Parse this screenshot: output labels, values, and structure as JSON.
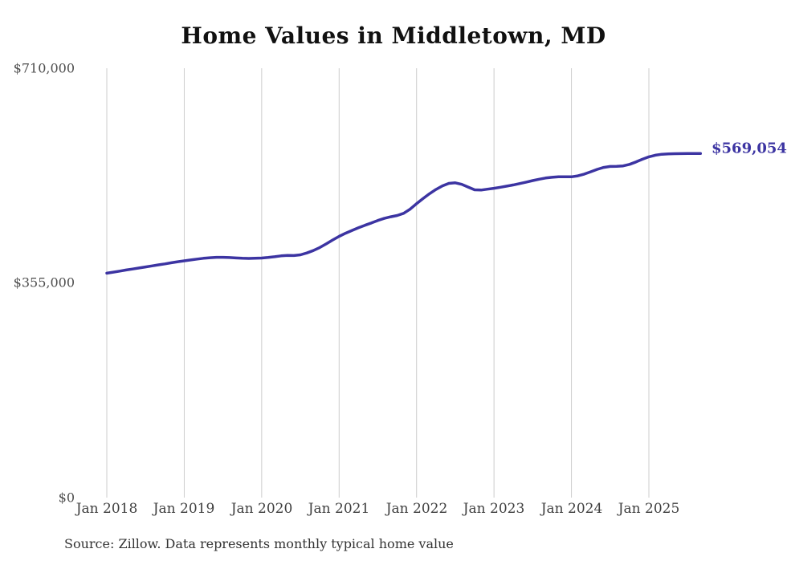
{
  "chart": {
    "title": "Home Values in Middletown, MD",
    "end_label": "$569,054",
    "source": "Source: Zillow. Data represents monthly typical home value"
  },
  "chart_data": {
    "type": "line",
    "title": "Home Values in Middletown, MD",
    "series_name": "Monthly typical home value",
    "x_start": "2018-01",
    "x_frequency": "monthly",
    "x_tick_labels": [
      "Jan 2018",
      "Jan 2019",
      "Jan 2020",
      "Jan 2021",
      "Jan 2022",
      "Jan 2023",
      "Jan 2024",
      "Jan 2025"
    ],
    "y_tick_labels": [
      "$710,000",
      "$355,000",
      "$0"
    ],
    "y_tick_values": [
      710000,
      355000,
      0
    ],
    "ylim": [
      0,
      710000
    ],
    "grid": "vertical-only",
    "line_color": "#3c34a2",
    "gridline_color": "#cccccc",
    "final_value": 569054,
    "final_value_label": "$569,054",
    "values": [
      371000,
      372800,
      374500,
      376300,
      378000,
      379700,
      381400,
      383100,
      384800,
      386500,
      388300,
      390000,
      391500,
      393000,
      394400,
      395700,
      396700,
      397300,
      397300,
      396900,
      396300,
      395800,
      395500,
      395700,
      396200,
      397100,
      398300,
      399700,
      400400,
      400200,
      401500,
      404500,
      408500,
      413500,
      419500,
      426000,
      432000,
      437200,
      441800,
      446200,
      450300,
      454200,
      458200,
      461700,
      464300,
      466500,
      470000,
      477000,
      486000,
      494500,
      502500,
      509500,
      515500,
      519500,
      520500,
      518000,
      513500,
      509000,
      508500,
      510000,
      511500,
      513200,
      515000,
      517000,
      519300,
      521700,
      524200,
      526500,
      528400,
      529700,
      530400,
      530600,
      530500,
      532000,
      535000,
      538800,
      542800,
      546000,
      547600,
      547700,
      548500,
      551000,
      555000,
      559500,
      563500,
      566200,
      567800,
      568400,
      568700,
      568800,
      568900,
      569000,
      569054
    ]
  }
}
